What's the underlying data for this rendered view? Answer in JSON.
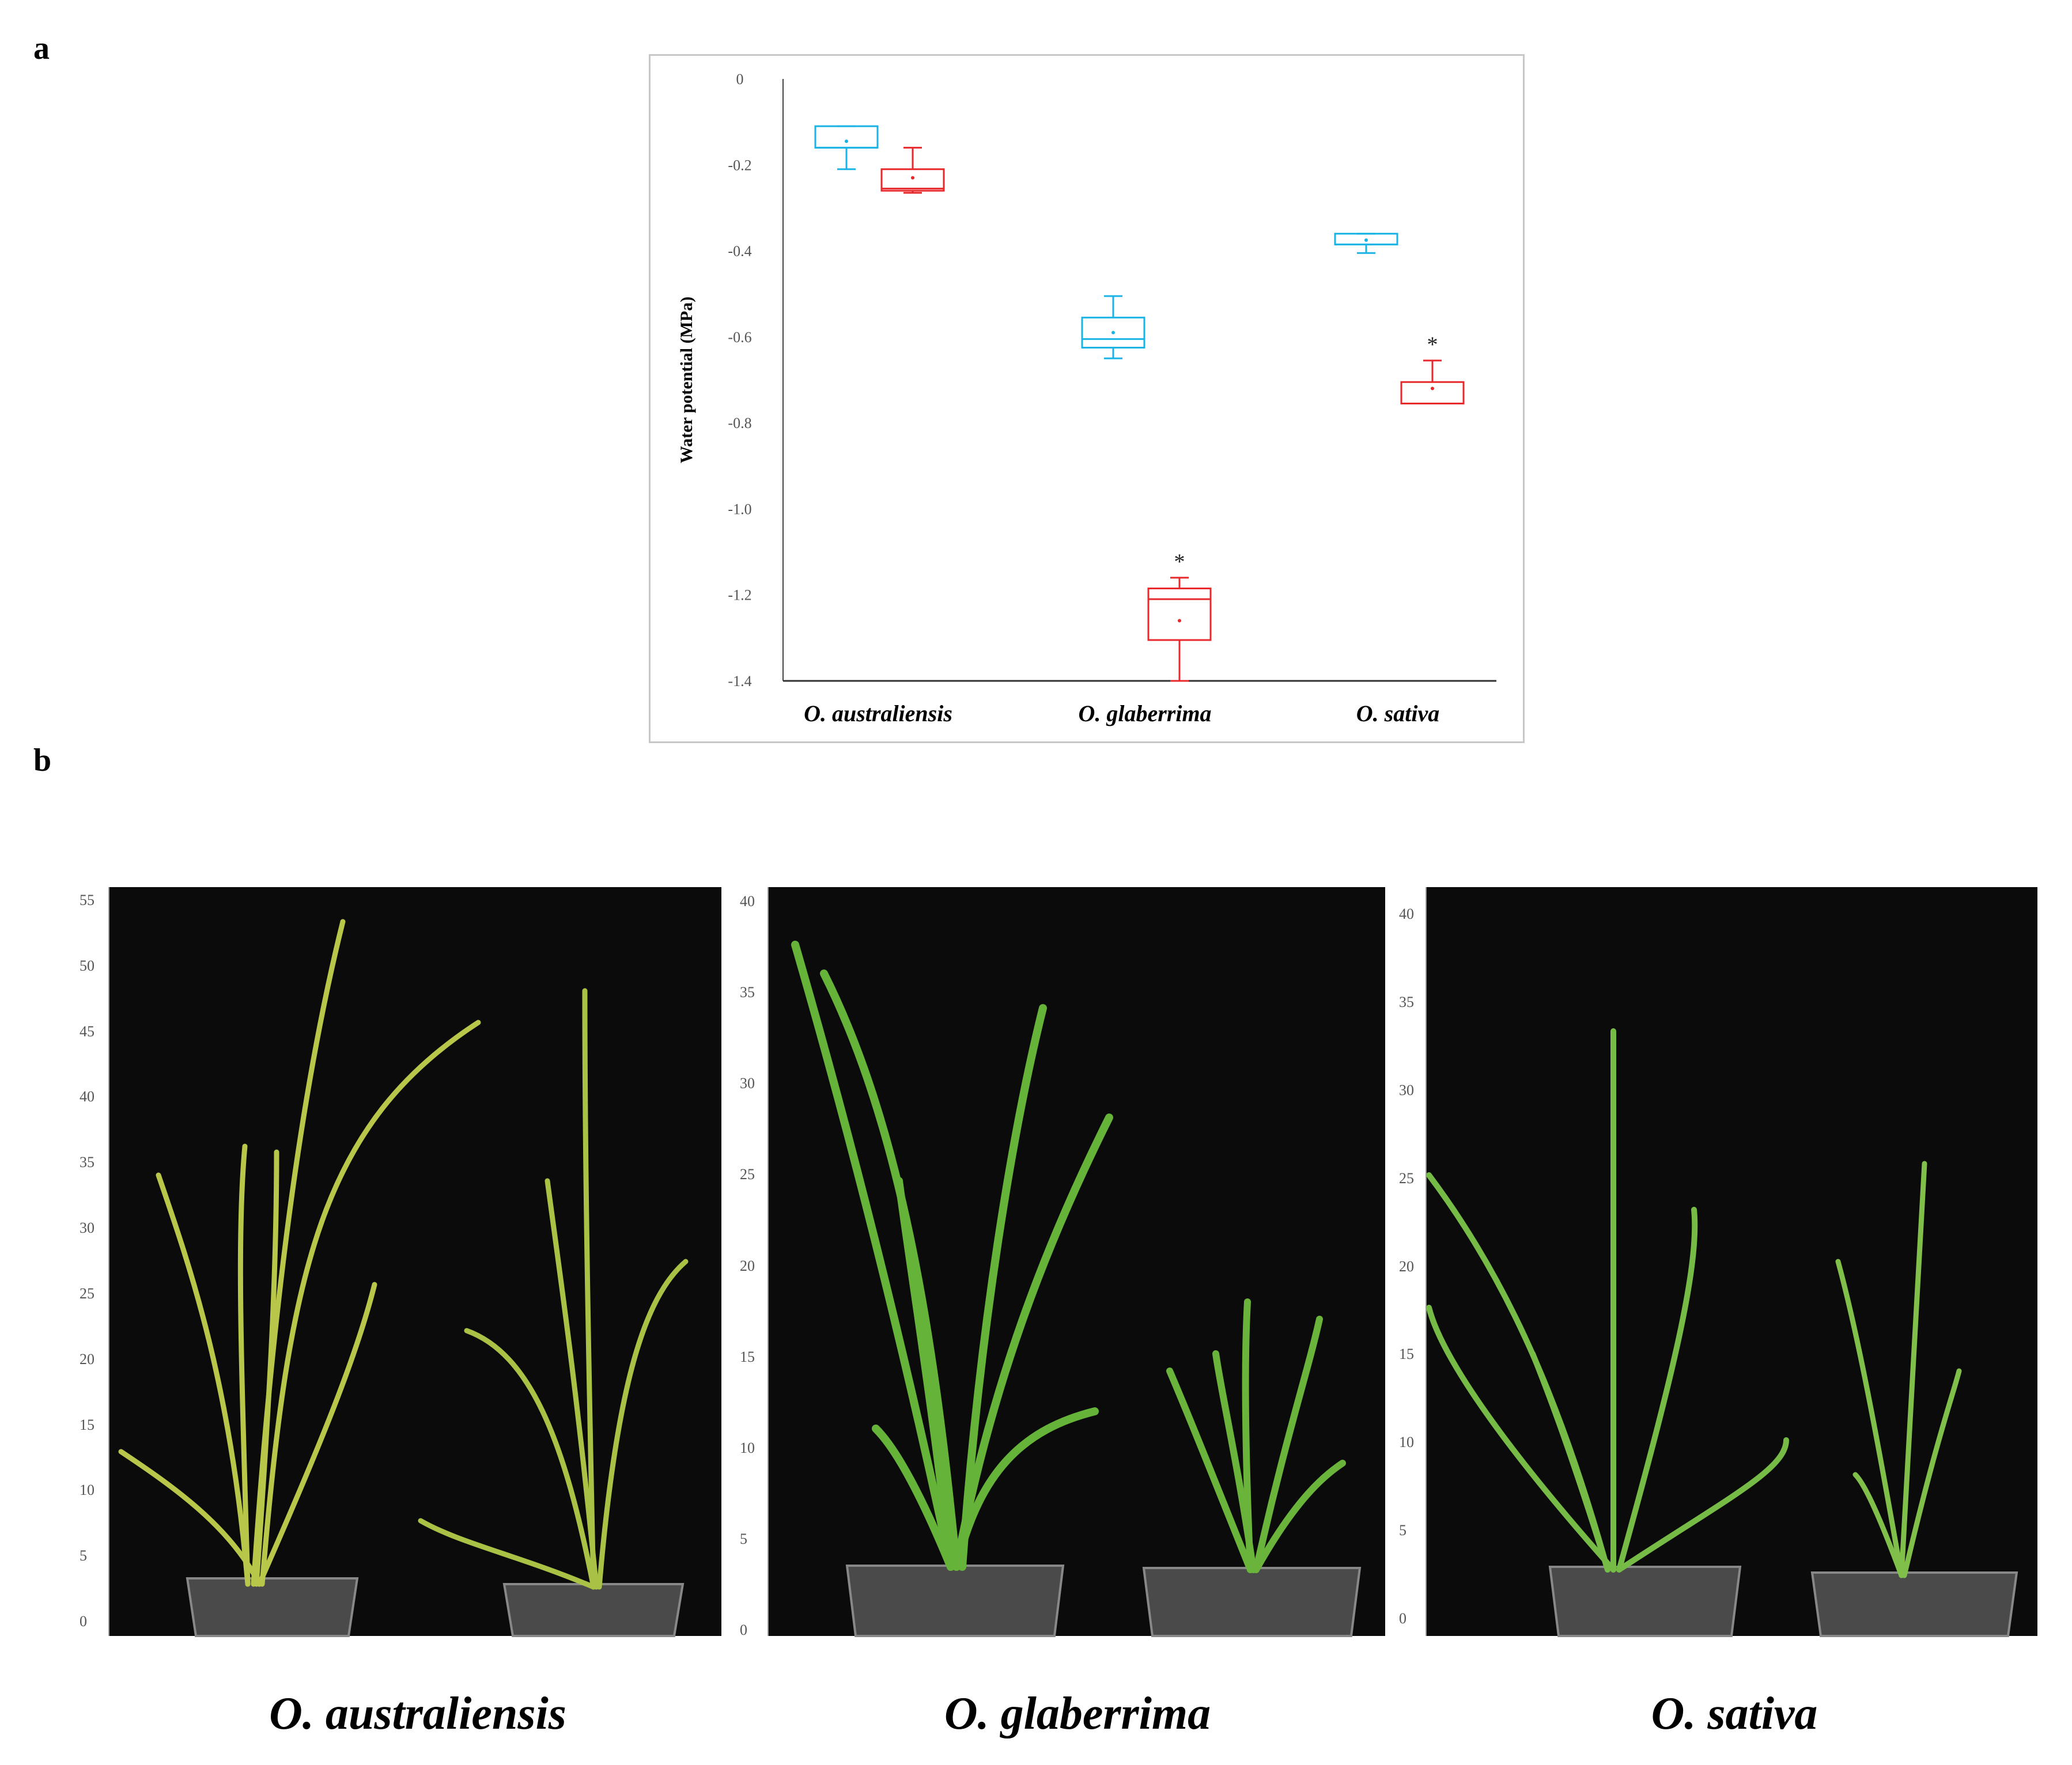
{
  "panel_a_label": "a",
  "panel_b_label": "b",
  "chart_data": {
    "type": "box",
    "title": "",
    "xlabel": "",
    "ylabel": "Water potential (MPa)",
    "ylim": [
      -1.4,
      0
    ],
    "yticks": [
      0,
      -0.2,
      -0.4,
      -0.6,
      -0.8,
      -1.0,
      -1.2,
      -1.4
    ],
    "ytick_labels": [
      "0",
      "-0.2",
      "-0.4",
      "-0.6",
      "-0.8",
      "-1.0",
      "-1.2",
      "-1.4"
    ],
    "categories": [
      "O. australiensis",
      "O. glaberrima",
      "O. sativa"
    ],
    "colors": {
      "control": "#1ab3e6",
      "stress": "#e8292b"
    },
    "series": [
      {
        "color": "#1ab3e6",
        "boxes": [
          {
            "min": -0.21,
            "q1": -0.16,
            "median": -0.16,
            "q3": -0.11,
            "max": -0.11,
            "mean": -0.145
          },
          {
            "min": -0.65,
            "q1": -0.625,
            "median": -0.605,
            "q3": -0.555,
            "max": -0.505,
            "mean": -0.59
          },
          {
            "min": -0.405,
            "q1": -0.385,
            "median": -0.385,
            "q3": -0.36,
            "max": -0.36,
            "mean": -0.375
          }
        ]
      },
      {
        "color": "#e8292b",
        "boxes": [
          {
            "min": -0.265,
            "q1": -0.26,
            "median": -0.255,
            "q3": -0.21,
            "max": -0.16,
            "mean": -0.23
          },
          {
            "min": -1.4,
            "q1": -1.305,
            "median": -1.21,
            "q3": -1.185,
            "max": -1.16,
            "mean": -1.26
          },
          {
            "min": -0.755,
            "q1": -0.755,
            "median": -0.755,
            "q3": -0.705,
            "max": -0.655,
            "mean": -0.72
          }
        ]
      }
    ],
    "annotations": [
      {
        "text": "*",
        "category": "O. glaberrima",
        "series": 1,
        "y": -1.11
      },
      {
        "text": "*",
        "category": "O. sativa",
        "series": 1,
        "y": -0.605
      }
    ]
  },
  "photos": [
    {
      "caption": "O. australiensis",
      "ruler": [
        "55",
        "50",
        "45",
        "40",
        "35",
        "30",
        "25",
        "20",
        "15",
        "10",
        "5",
        "0"
      ]
    },
    {
      "caption": "O. glaberrima",
      "ruler": [
        "40",
        "35",
        "30",
        "25",
        "20",
        "15",
        "10",
        "5",
        "0"
      ]
    },
    {
      "caption": "O. sativa",
      "ruler": [
        "40",
        "35",
        "30",
        "25",
        "20",
        "15",
        "10",
        "5",
        "0"
      ]
    }
  ]
}
